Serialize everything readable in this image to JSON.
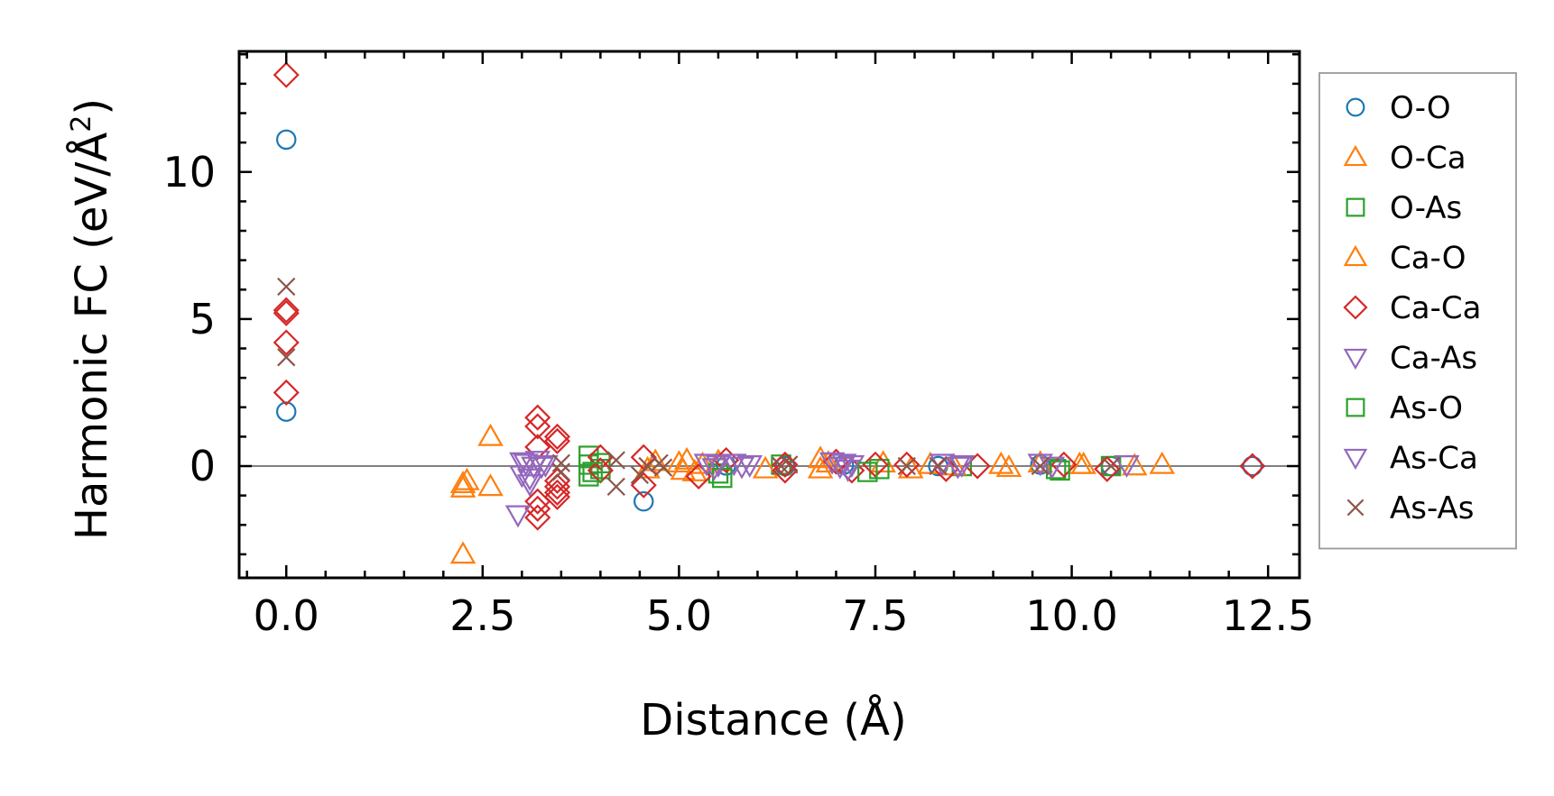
{
  "chart_data": {
    "type": "scatter",
    "xlabel": "Distance (Å)",
    "ylabel_main": "Harmonic FC (eV/Å",
    "ylabel_sup": "2",
    "ylabel_close": ")",
    "xlim": [
      -0.6,
      12.9
    ],
    "ylim": [
      -3.8,
      14.1
    ],
    "xticks": [
      0.0,
      2.5,
      5.0,
      7.5,
      10.0,
      12.5
    ],
    "xtick_labels": [
      "0.0",
      "2.5",
      "5.0",
      "7.5",
      "10.0",
      "12.5"
    ],
    "yticks": [
      0,
      5,
      10
    ],
    "ytick_labels": [
      "0",
      "5",
      "10"
    ],
    "zero_line": true,
    "legend_position": "right",
    "series": [
      {
        "name": "O-O",
        "marker": "circle",
        "color": "#1f77b4",
        "points": [
          [
            0,
            11.1
          ],
          [
            0,
            1.85
          ],
          [
            4.55,
            -1.2
          ],
          [
            5.6,
            0.02
          ],
          [
            6.35,
            0
          ],
          [
            7.1,
            0.05
          ],
          [
            8.3,
            0
          ],
          [
            9.6,
            0.05
          ],
          [
            10.5,
            0
          ],
          [
            12.3,
            0
          ]
        ]
      },
      {
        "name": "O-Ca",
        "marker": "triangle-up",
        "color": "#ff7f0e",
        "points": [
          [
            2.25,
            -0.6
          ],
          [
            2.25,
            -0.75
          ],
          [
            2.25,
            -3.0
          ],
          [
            2.6,
            1.0
          ],
          [
            2.6,
            -0.7
          ],
          [
            4.6,
            -0.1
          ],
          [
            5.0,
            0.1
          ],
          [
            5.05,
            -0.15
          ],
          [
            5.2,
            -0.2
          ],
          [
            5.3,
            0.05
          ],
          [
            5.5,
            0.15
          ],
          [
            6.8,
            0.25
          ],
          [
            6.8,
            -0.1
          ],
          [
            7.6,
            0.1
          ],
          [
            8.2,
            0.05
          ],
          [
            9.1,
            0.05
          ],
          [
            9.6,
            0.1
          ],
          [
            10.15,
            0.05
          ],
          [
            10.8,
            0
          ],
          [
            11.15,
            0.05
          ]
        ]
      },
      {
        "name": "O-As",
        "marker": "square",
        "color": "#2ca02c",
        "points": [
          [
            3.85,
            0.35
          ],
          [
            3.85,
            0.05
          ],
          [
            3.85,
            -0.35
          ],
          [
            4.0,
            0.1
          ],
          [
            4.0,
            -0.1
          ],
          [
            5.5,
            -0.25
          ],
          [
            6.3,
            0.05
          ],
          [
            7.55,
            -0.1
          ],
          [
            8.6,
            0
          ],
          [
            9.8,
            -0.1
          ],
          [
            10.5,
            0
          ]
        ]
      },
      {
        "name": "Ca-O",
        "marker": "triangle-up",
        "color": "#ff7f0e",
        "points": [
          [
            2.3,
            -0.5
          ],
          [
            4.7,
            0.15
          ],
          [
            5.1,
            0.2
          ],
          [
            6.1,
            -0.1
          ],
          [
            6.9,
            0.1
          ],
          [
            7.95,
            -0.1
          ],
          [
            8.5,
            0
          ],
          [
            9.2,
            -0.05
          ],
          [
            10.1,
            0.05
          ]
        ]
      },
      {
        "name": "Ca-Ca",
        "marker": "diamond",
        "color": "#d62728",
        "points": [
          [
            0,
            13.3
          ],
          [
            0,
            5.3
          ],
          [
            0,
            5.2
          ],
          [
            0,
            4.2
          ],
          [
            0,
            2.5
          ],
          [
            3.2,
            1.65
          ],
          [
            3.2,
            1.35
          ],
          [
            3.2,
            0.65
          ],
          [
            3.2,
            -1.2
          ],
          [
            3.2,
            -1.45
          ],
          [
            3.2,
            -1.75
          ],
          [
            3.45,
            1.0
          ],
          [
            3.45,
            0.85
          ],
          [
            3.45,
            -0.5
          ],
          [
            3.45,
            -0.7
          ],
          [
            3.45,
            -0.9
          ],
          [
            3.45,
            -1.05
          ],
          [
            4.0,
            0.3
          ],
          [
            4.0,
            -0.15
          ],
          [
            4.55,
            0.3
          ],
          [
            4.55,
            -0.65
          ],
          [
            5.25,
            -0.35
          ],
          [
            5.6,
            0.2
          ],
          [
            6.35,
            -0.15
          ],
          [
            6.35,
            0.05
          ],
          [
            7.0,
            0.15
          ],
          [
            7.2,
            -0.15
          ],
          [
            7.5,
            0.05
          ],
          [
            7.9,
            0.05
          ],
          [
            8.4,
            -0.1
          ],
          [
            8.8,
            0
          ],
          [
            9.9,
            0.05
          ],
          [
            10.45,
            -0.1
          ],
          [
            12.3,
            0
          ]
        ]
      },
      {
        "name": "Ca-As",
        "marker": "triangle-down",
        "color": "#9467bd",
        "points": [
          [
            3.0,
            0.15
          ],
          [
            3.0,
            -0.3
          ],
          [
            3.05,
            0.1
          ],
          [
            3.1,
            -0.4
          ],
          [
            3.15,
            0.0
          ],
          [
            3.2,
            0.2
          ],
          [
            3.3,
            0.05
          ],
          [
            5.35,
            0.1
          ],
          [
            5.5,
            0.05
          ],
          [
            5.7,
            0.1
          ],
          [
            5.9,
            0.05
          ],
          [
            6.95,
            0.15
          ],
          [
            7.1,
            0.1
          ],
          [
            7.2,
            0.05
          ],
          [
            8.35,
            0.1
          ],
          [
            8.6,
            0.05
          ],
          [
            9.6,
            0.1
          ],
          [
            10.7,
            0.05
          ]
        ]
      },
      {
        "name": "As-O",
        "marker": "square",
        "color": "#2ca02c",
        "points": [
          [
            3.9,
            -0.2
          ],
          [
            5.55,
            -0.4
          ],
          [
            7.4,
            -0.2
          ],
          [
            9.85,
            -0.15
          ]
        ]
      },
      {
        "name": "As-Ca",
        "marker": "triangle-down",
        "color": "#9467bd",
        "points": [
          [
            2.95,
            -1.65
          ],
          [
            3.1,
            -0.6
          ],
          [
            3.25,
            0.0
          ],
          [
            5.45,
            -0.05
          ],
          [
            5.8,
            0.0
          ],
          [
            7.05,
            0.0
          ],
          [
            7.15,
            -0.1
          ],
          [
            8.55,
            0.0
          ],
          [
            9.75,
            0.0
          ]
        ]
      },
      {
        "name": "As-As",
        "marker": "x",
        "color": "#8c564b",
        "points": [
          [
            0,
            6.1
          ],
          [
            0,
            3.7
          ],
          [
            3.5,
            0.1
          ],
          [
            3.5,
            -0.2
          ],
          [
            4.2,
            0.2
          ],
          [
            4.2,
            -0.7
          ],
          [
            4.5,
            -0.3
          ],
          [
            4.6,
            0.0
          ],
          [
            4.75,
            0.1
          ],
          [
            4.8,
            -0.05
          ],
          [
            6.3,
            0.0
          ],
          [
            6.4,
            0.05
          ],
          [
            7.9,
            0.0
          ],
          [
            8.3,
            0.0
          ],
          [
            9.6,
            0.0
          ],
          [
            10.5,
            0.0
          ]
        ]
      }
    ]
  }
}
